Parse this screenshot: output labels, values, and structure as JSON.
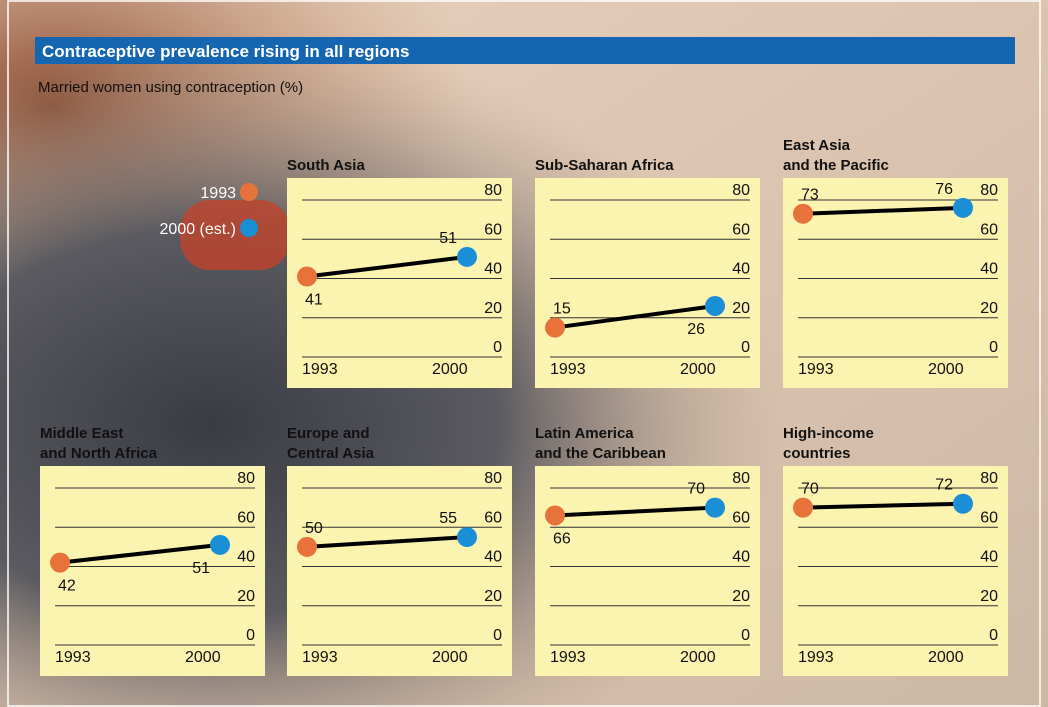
{
  "title": "Contraceptive prevalence rising in all regions",
  "subtitle": "Married women using contraception (%)",
  "legend": [
    {
      "name": "1993",
      "color": "#e8733a"
    },
    {
      "name": "2000 (est.)",
      "color": "#1a8fd6"
    }
  ],
  "chart_data": [
    {
      "type": "line",
      "title": "South Asia",
      "categories": [
        "1993",
        "2000"
      ],
      "values": [
        41,
        51
      ],
      "ylim": [
        0,
        80
      ],
      "yticks": [
        0,
        20,
        40,
        60,
        80
      ]
    },
    {
      "type": "line",
      "title": "Sub-Saharan Africa",
      "categories": [
        "1993",
        "2000"
      ],
      "values": [
        15,
        26
      ],
      "ylim": [
        0,
        80
      ],
      "yticks": [
        0,
        20,
        40,
        60,
        80
      ]
    },
    {
      "type": "line",
      "title": "East Asia\nand the Pacific",
      "categories": [
        "1993",
        "2000"
      ],
      "values": [
        73,
        76
      ],
      "ylim": [
        0,
        80
      ],
      "yticks": [
        0,
        20,
        40,
        60,
        80
      ]
    },
    {
      "type": "line",
      "title": "Middle East\nand North Africa",
      "categories": [
        "1993",
        "2000"
      ],
      "values": [
        42,
        51
      ],
      "ylim": [
        0,
        80
      ],
      "yticks": [
        0,
        20,
        40,
        60,
        80
      ]
    },
    {
      "type": "line",
      "title": "Europe and\nCentral Asia",
      "categories": [
        "1993",
        "2000"
      ],
      "values": [
        50,
        55
      ],
      "ylim": [
        0,
        80
      ],
      "yticks": [
        0,
        20,
        40,
        60,
        80
      ]
    },
    {
      "type": "line",
      "title": "Latin America\nand the Caribbean",
      "categories": [
        "1993",
        "2000"
      ],
      "values": [
        66,
        70
      ],
      "ylim": [
        0,
        80
      ],
      "yticks": [
        0,
        20,
        40,
        60,
        80
      ]
    },
    {
      "type": "line",
      "title": "High-income\ncountries",
      "categories": [
        "1993",
        "2000"
      ],
      "values": [
        70,
        72
      ],
      "ylim": [
        0,
        80
      ],
      "yticks": [
        0,
        20,
        40,
        60,
        80
      ]
    }
  ]
}
